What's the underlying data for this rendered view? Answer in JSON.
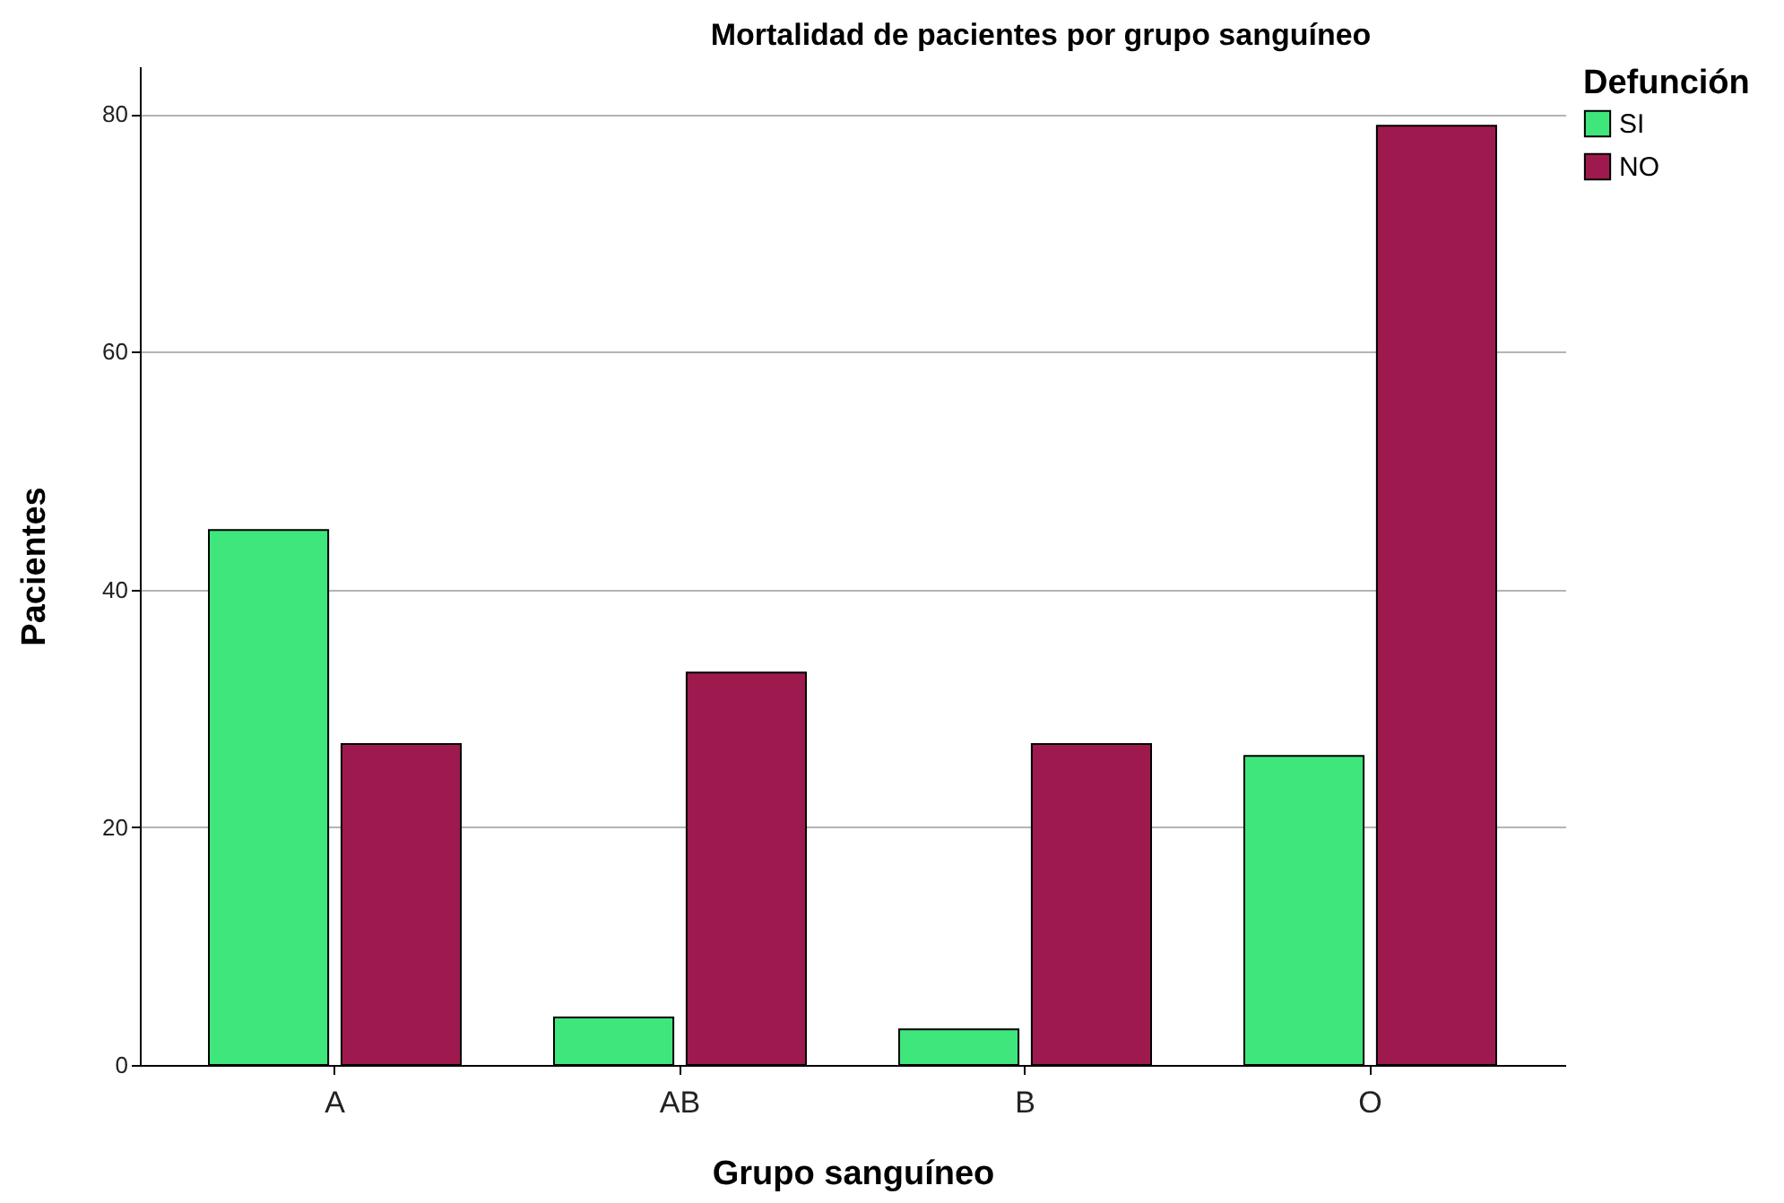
{
  "chart_data": {
    "type": "bar",
    "title": "Mortalidad de pacientes por grupo sanguíneo",
    "xlabel": "Grupo sanguíneo",
    "ylabel": "Pacientes",
    "legend_title": "Defunción",
    "categories": [
      "A",
      "AB",
      "B",
      "O"
    ],
    "series": [
      {
        "name": "SI",
        "color": "#3fe67b",
        "values": [
          45,
          4,
          3,
          26
        ]
      },
      {
        "name": "NO",
        "color": "#9e1a4e",
        "values": [
          27,
          33,
          27,
          79
        ]
      }
    ],
    "ylim": [
      0,
      84
    ],
    "yticks": [
      0,
      20,
      40,
      60,
      80
    ],
    "grid": "y",
    "legend": "top right"
  }
}
